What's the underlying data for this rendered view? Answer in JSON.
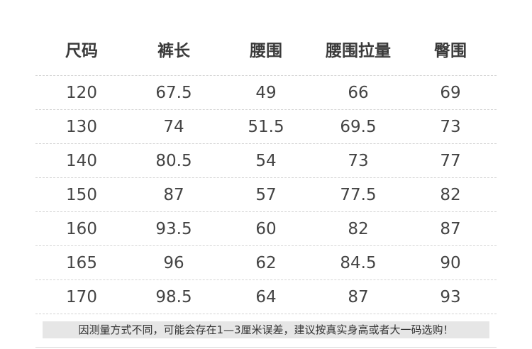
{
  "headers": [
    "尺码",
    "裤长",
    "腰围",
    "腰围拉量",
    "臀围"
  ],
  "rows": [
    [
      "120",
      "67.5",
      "49",
      "66",
      "69"
    ],
    [
      "130",
      "74",
      "51.5",
      "69.5",
      "73"
    ],
    [
      "140",
      "80.5",
      "54",
      "73",
      "77"
    ],
    [
      "150",
      "87",
      "57",
      "77.5",
      "82"
    ],
    [
      "160",
      "93.5",
      "60",
      "82",
      "87"
    ],
    [
      "165",
      "96",
      "62",
      "84.5",
      "90"
    ],
    [
      "170",
      "98.5",
      "64",
      "87",
      "93"
    ]
  ],
  "note": "因测量方式不同，可能会存在1—3厘米误差，建议按真实身高或者大一码选购！"
}
